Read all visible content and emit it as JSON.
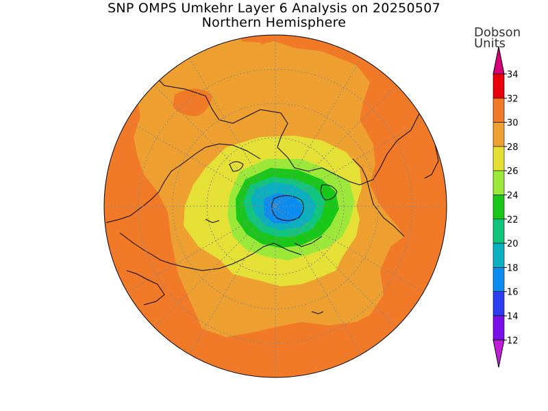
{
  "title": {
    "line1": "SNP OMPS Umkehr Layer 6 Analysis on 20250507",
    "line2": "Northern Hemisphere"
  },
  "colorbar": {
    "units_line1": "Dobson",
    "units_line2": "Units",
    "ticks": [
      "34",
      "32",
      "30",
      "28",
      "26",
      "24",
      "22",
      "20",
      "18",
      "16",
      "14",
      "12"
    ],
    "bins": [
      {
        "from": 32,
        "to": 34,
        "color": "#e8000b"
      },
      {
        "from": 30,
        "to": 32,
        "color": "#f07a28"
      },
      {
        "from": 28,
        "to": 30,
        "color": "#eda030"
      },
      {
        "from": 26,
        "to": 28,
        "color": "#e5e035"
      },
      {
        "from": 24,
        "to": 26,
        "color": "#9be83a"
      },
      {
        "from": 22,
        "to": 24,
        "color": "#19c719"
      },
      {
        "from": 20,
        "to": 22,
        "color": "#12c47e"
      },
      {
        "from": 18,
        "to": 20,
        "color": "#0ab0c0"
      },
      {
        "from": 16,
        "to": 18,
        "color": "#0a8cf0"
      },
      {
        "from": 14,
        "to": 16,
        "color": "#2a3ef0"
      },
      {
        "from": 12,
        "to": 14,
        "color": "#7a10e8"
      }
    ],
    "over_color": "#d8007a",
    "under_color": "#c01ed8"
  },
  "map": {
    "projection": "north-polar-stereographic",
    "grid": "dotted"
  }
}
